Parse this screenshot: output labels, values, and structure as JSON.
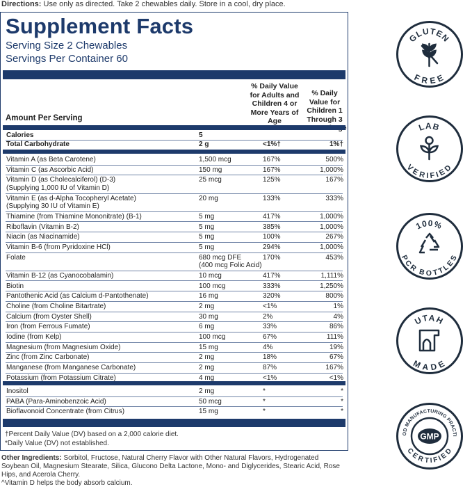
{
  "directions": {
    "label": "Directions:",
    "text": " Use only as directed. Take 2 chewables daily. Store in a cool, dry place."
  },
  "facts": {
    "title": "Supplement Facts",
    "serving_size": "Serving Size 2 Chewables",
    "servings_per_container": "Servings Per Container 60",
    "amount_per_serving": "Amount Per Serving",
    "col_adults": "% Daily Value for Adults and Children 4 or More Years of Age",
    "col_children": "% Daily Value for Children 1 Through 3 Years of Age"
  },
  "group1": [
    {
      "name": "Calories",
      "amount": "5",
      "dv_adult": "",
      "dv_child": ""
    },
    {
      "name": "Total Carbohydrate",
      "amount": "2 g",
      "dv_adult": "<1%†",
      "dv_child": "1%†"
    }
  ],
  "group2": [
    {
      "name": "Vitamin A (as Beta Carotene)",
      "amount": "1,500 mcg",
      "dv_adult": "167%",
      "dv_child": "500%"
    },
    {
      "name": "Vitamin C (as Ascorbic Acid)",
      "amount": "150 mg",
      "dv_adult": "167%",
      "dv_child": "1,000%"
    },
    {
      "name": "Vitamin D (as Cholecalciferol) (D-3)",
      "name2": "(Supplying 1,000 IU of Vitamin D)",
      "amount": "25 mcg",
      "dv_adult": "125%",
      "dv_child": "167%"
    },
    {
      "name": "Vitamin E (as d-Alpha Tocopheryl Acetate)",
      "name2": "(Supplying 30 IU of Vitamin E)",
      "amount": "20 mg",
      "dv_adult": "133%",
      "dv_child": "333%"
    },
    {
      "name": "Thiamine (from Thiamine Mononitrate) (B-1)",
      "amount": "5 mg",
      "dv_adult": "417%",
      "dv_child": "1,000%"
    },
    {
      "name": "Riboflavin (Vitamin B-2)",
      "amount": "5 mg",
      "dv_adult": "385%",
      "dv_child": "1,000%"
    },
    {
      "name": "Niacin (as Niacinamide)",
      "amount": "5 mg",
      "dv_adult": "100%",
      "dv_child": "267%"
    },
    {
      "name": "Vitamin B-6 (from Pyridoxine HCl)",
      "amount": "5 mg",
      "dv_adult": "294%",
      "dv_child": "1,000%"
    },
    {
      "name": "Folate",
      "amount": "680 mcg DFE",
      "amount2": "(400 mcg Folic Acid)",
      "dv_adult": "170%",
      "dv_child": "453%"
    },
    {
      "name": "Vitamin B-12 (as Cyanocobalamin)",
      "amount": "10 mcg",
      "dv_adult": "417%",
      "dv_child": "1,111%"
    },
    {
      "name": "Biotin",
      "amount": "100 mcg",
      "dv_adult": "333%",
      "dv_child": "1,250%"
    },
    {
      "name": "Pantothenic Acid (as Calcium d-Pantothenate)",
      "amount": "16 mg",
      "dv_adult": "320%",
      "dv_child": "800%"
    },
    {
      "name": "Choline (from Choline Bitartrate)",
      "amount": "2 mg",
      "dv_adult": "<1%",
      "dv_child": "1%"
    },
    {
      "name": "Calcium (from Oyster Shell)",
      "amount": "30 mg",
      "dv_adult": "2%",
      "dv_child": "4%"
    },
    {
      "name": "Iron (from Ferrous Fumate)",
      "amount": "6 mg",
      "dv_adult": "33%",
      "dv_child": "86%"
    },
    {
      "name": "Iodine (from Kelp)",
      "amount": "100 mcg",
      "dv_adult": "67%",
      "dv_child": "111%"
    },
    {
      "name": "Magnesium (from Magnesium Oxide)",
      "amount": "15 mg",
      "dv_adult": "4%",
      "dv_child": "19%"
    },
    {
      "name": "Zinc (from Zinc Carbonate)",
      "amount": "2 mg",
      "dv_adult": "18%",
      "dv_child": "67%"
    },
    {
      "name": "Manganese (from Manganese Carbonate)",
      "amount": "2 mg",
      "dv_adult": "87%",
      "dv_child": "167%"
    },
    {
      "name": "Potassium (from Potassium Citrate)",
      "amount": "4 mg",
      "dv_adult": "<1%",
      "dv_child": "<1%"
    }
  ],
  "group3": [
    {
      "name": "Inositol",
      "amount": "2 mg",
      "dv_adult": "*",
      "dv_child": "*"
    },
    {
      "name": "PABA (Para-Aminobenzoic Acid)",
      "amount": "50 mcg",
      "dv_adult": "*",
      "dv_child": "*"
    },
    {
      "name": "Bioflavonoid Concentrate (from Citrus)",
      "amount": "15 mg",
      "dv_adult": "*",
      "dv_child": "*"
    }
  ],
  "footnotes": {
    "percent_dv": "†Percent Daily Value (DV) based on a 2,000 calorie diet.",
    "dv_not_established": "*Daily Value (DV) not established."
  },
  "other_ingredients": {
    "label": "Other Ingredients:",
    "text": " Sorbitol, Fructose, Natural Cherry Flavor with Other Natural Flavors, Hydrogenated Soybean Oil, Magnesium Stearate, Silica, Glucono Delta Lactone, Mono- and Diglycerides, Stearic Acid, Rose Hips, and Acerola Cherry."
  },
  "vitamin_d_note": "^Vitamin D helps the body absorb calcium.",
  "badges": {
    "gluten_free": {
      "top": "GLUTEN",
      "bottom": "FREE",
      "icon": "wheat-icon"
    },
    "lab_verified": {
      "top": "LAB",
      "bottom": "VERIFIED",
      "icon": "sprout-icon"
    },
    "pcr_bottles": {
      "top": "100%",
      "bottom": "PCR BOTTLES",
      "icon": "recycle-icon"
    },
    "utah_made": {
      "top": "UTAH",
      "bottom": "MADE",
      "icon": "arch-icon"
    },
    "gmp": {
      "ring": "GOOD MANUFACTURING PRACTICE",
      "center": "GMP",
      "bottom": "CERTIFIED"
    }
  },
  "colors": {
    "brand_navy": "#1d3a6b",
    "badge_ink": "#1f2d3d"
  }
}
